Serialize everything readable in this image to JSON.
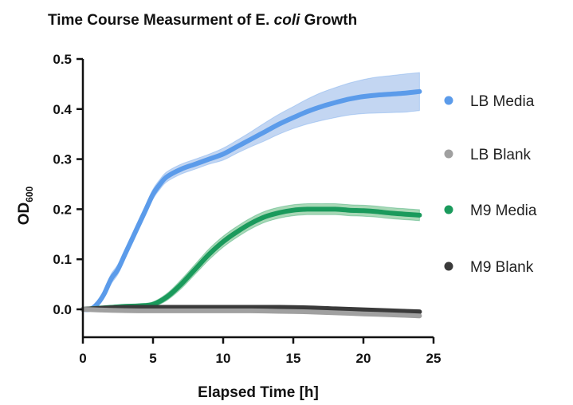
{
  "chart_data": {
    "type": "line",
    "title": {
      "prefix": "Time Course Measurment of E. ",
      "italic": "coli",
      "suffix": " Growth"
    },
    "xlabel": "Elapsed Time [h]",
    "ylabel": {
      "main": "OD",
      "subscript": "600"
    },
    "xlim": [
      0,
      25
    ],
    "ylim": [
      0,
      0.5
    ],
    "xticks": [
      0,
      5,
      10,
      15,
      20,
      25
    ],
    "xtick_labels": [
      "0",
      "5",
      "10",
      "15",
      "20",
      "25"
    ],
    "yticks": [
      0.0,
      0.1,
      0.2,
      0.3,
      0.4,
      0.5
    ],
    "ytick_labels": [
      "0.0",
      "0.1",
      "0.2",
      "0.3",
      "0.4",
      "0.5"
    ],
    "legend_position": "right",
    "grid": false,
    "series": [
      {
        "name": "LB Media",
        "color": "#5b9bea",
        "band_color": "#c3d6f2",
        "x": [
          0,
          0.5,
          1,
          1.5,
          2,
          2.5,
          3,
          3.5,
          4,
          4.5,
          5,
          5.5,
          6,
          7,
          8,
          9,
          10,
          11,
          12,
          13,
          14,
          15,
          16,
          17,
          18,
          19,
          20,
          21,
          22,
          23,
          24
        ],
        "y": [
          0.0,
          0.0,
          0.01,
          0.03,
          0.06,
          0.08,
          0.11,
          0.14,
          0.17,
          0.2,
          0.23,
          0.25,
          0.265,
          0.28,
          0.29,
          0.3,
          0.31,
          0.325,
          0.34,
          0.355,
          0.37,
          0.383,
          0.395,
          0.405,
          0.413,
          0.42,
          0.425,
          0.428,
          0.43,
          0.432,
          0.435
        ],
        "band": [
          0.004,
          0.004,
          0.006,
          0.008,
          0.01,
          0.01,
          0.01,
          0.01,
          0.01,
          0.01,
          0.01,
          0.01,
          0.01,
          0.01,
          0.01,
          0.01,
          0.012,
          0.013,
          0.015,
          0.018,
          0.02,
          0.022,
          0.025,
          0.028,
          0.03,
          0.032,
          0.034,
          0.036,
          0.037,
          0.038,
          0.038
        ]
      },
      {
        "name": "LB Blank",
        "color": "#a0a0a0",
        "band_color": "#d0d0d0",
        "x": [
          0,
          2,
          4,
          6,
          8,
          10,
          12,
          14,
          16,
          18,
          20,
          22,
          24
        ],
        "y": [
          0.0,
          -0.002,
          -0.003,
          -0.003,
          -0.003,
          -0.003,
          -0.003,
          -0.004,
          -0.005,
          -0.007,
          -0.009,
          -0.011,
          -0.013
        ],
        "band": [
          0.003,
          0.003,
          0.003,
          0.003,
          0.003,
          0.003,
          0.003,
          0.003,
          0.003,
          0.003,
          0.003,
          0.003,
          0.004
        ]
      },
      {
        "name": "M9 Media",
        "color": "#1a9a5c",
        "band_color": "#a8d8b6",
        "x": [
          0,
          1,
          2,
          3,
          4,
          5,
          6,
          7,
          8,
          9,
          10,
          11,
          12,
          13,
          14,
          15,
          16,
          17,
          18,
          19,
          20,
          21,
          22,
          23,
          24
        ],
        "y": [
          0.0,
          0.002,
          0.004,
          0.006,
          0.007,
          0.01,
          0.025,
          0.05,
          0.08,
          0.11,
          0.135,
          0.155,
          0.172,
          0.185,
          0.193,
          0.198,
          0.2,
          0.2,
          0.2,
          0.198,
          0.197,
          0.195,
          0.192,
          0.19,
          0.188
        ],
        "band": [
          0.002,
          0.002,
          0.003,
          0.003,
          0.004,
          0.005,
          0.007,
          0.009,
          0.01,
          0.011,
          0.011,
          0.011,
          0.011,
          0.011,
          0.011,
          0.011,
          0.011,
          0.011,
          0.011,
          0.011,
          0.011,
          0.011,
          0.011,
          0.011,
          0.011
        ]
      },
      {
        "name": "M9 Blank",
        "color": "#3a3a3a",
        "band_color": "#8a8a8a",
        "x": [
          0,
          2,
          4,
          6,
          8,
          10,
          12,
          14,
          16,
          18,
          20,
          22,
          24
        ],
        "y": [
          0.0,
          0.003,
          0.004,
          0.004,
          0.004,
          0.004,
          0.004,
          0.004,
          0.003,
          0.001,
          -0.001,
          -0.003,
          -0.005
        ],
        "band": [
          0.002,
          0.002,
          0.002,
          0.002,
          0.002,
          0.002,
          0.002,
          0.002,
          0.002,
          0.002,
          0.002,
          0.002,
          0.002
        ]
      }
    ]
  }
}
